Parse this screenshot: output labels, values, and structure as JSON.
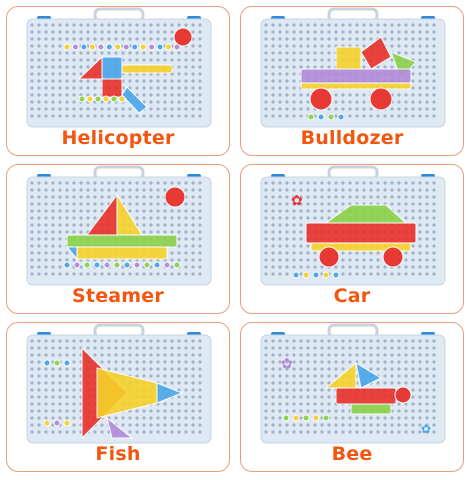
{
  "captions": {
    "helicopter": "Helicopter",
    "bulldozer": "Bulldozer",
    "steamer": "Steamer",
    "car": "Car",
    "fish": "Fish",
    "bee": "Bee"
  },
  "colors": {
    "caption": "#f2560f",
    "card_border": "#e8a07a",
    "board": "#dfe9f4",
    "peg": "#9fb2c8",
    "red": "#e8312a",
    "yellow": "#f6d22b",
    "green": "#8cd14a",
    "blue": "#4aa6e8",
    "purple": "#b38ad9"
  }
}
